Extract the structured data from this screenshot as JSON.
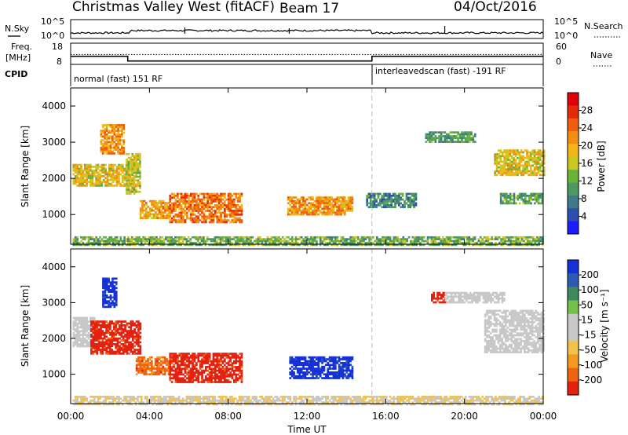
{
  "header": {
    "station": "Christmas Valley West (fitACF)",
    "beam": "Beam 17",
    "date": "04/Oct/2016"
  },
  "nsky_panel": {
    "left_label": "N.Sky",
    "left_ticks": [
      "10^5",
      "10^0"
    ],
    "right_label": "N.Search",
    "right_ticks": [
      "10^5",
      "10^0"
    ]
  },
  "freq_panel": {
    "left_label_line1": "Freq.",
    "left_label_line2": "[MHz]",
    "left_ticks": [
      "18",
      "8"
    ],
    "right_label": "Nave",
    "right_ticks": [
      "60",
      "0"
    ],
    "freq_mhz": [
      [
        0,
        11.8
      ],
      [
        2.9,
        11.8
      ],
      [
        2.9,
        9.6
      ],
      [
        15.3,
        9.6
      ],
      [
        15.3,
        11.8
      ],
      [
        24,
        11.8
      ]
    ],
    "nave": [
      [
        0,
        28
      ],
      [
        24,
        28
      ]
    ]
  },
  "cpid": {
    "label": "CPID",
    "modes": [
      {
        "text": "normal (fast) 151 RF",
        "start_hour": 0
      },
      {
        "text": "interleavedscan (fast) -191 RF",
        "start_hour": 15.3
      }
    ]
  },
  "power_panel": {
    "ylabel": "Slant Range [km]",
    "yticks": [
      "1000",
      "2000",
      "3000",
      "4000"
    ],
    "colorbar_label": "Power [dB]",
    "colorbar_ticks": [
      "4",
      "8",
      "12",
      "16",
      "20",
      "24",
      "28"
    ],
    "colorbar_colors": [
      "#1c1cff",
      "#2f4fb0",
      "#3e7a8a",
      "#4d9a60",
      "#6ab33a",
      "#c8c820",
      "#f3b616",
      "#f48e12",
      "#f15d0c",
      "#e52a0a",
      "#e0000a"
    ]
  },
  "velocity_panel": {
    "ylabel": "Slant Range [km]",
    "yticks": [
      "1000",
      "2000",
      "3000",
      "4000"
    ],
    "colorbar_label": "Velocity [m s⁻¹]",
    "colorbar_ticks": [
      "200",
      "100",
      "50",
      "15",
      "-15",
      "-50",
      "-100",
      "-200"
    ],
    "colorbar_colors": [
      "#1530d8",
      "#2b5bb4",
      "#3e8a5c",
      "#74c14a",
      "#c8c8c8",
      "#c8c8c8",
      "#f2c24a",
      "#f59a20",
      "#f0620e",
      "#e42010"
    ]
  },
  "xaxis": {
    "label": "Time UT",
    "ticks": [
      "00:00",
      "04:00",
      "08:00",
      "12:00",
      "16:00",
      "20:00",
      "00:00"
    ]
  },
  "chart_data": {
    "type": "heatmap",
    "x_range_hours": [
      0,
      24
    ],
    "y_range_km": [
      180,
      4500
    ],
    "mode_change_hour": 15.3,
    "power_regions_db": [
      {
        "t0": 0.1,
        "t1": 3.2,
        "r0": 1800,
        "r1": 2400,
        "db": 18
      },
      {
        "t0": 1.5,
        "t1": 2.7,
        "r0": 2700,
        "r1": 3500,
        "db": 22
      },
      {
        "t0": 2.8,
        "t1": 3.5,
        "r0": 1600,
        "r1": 2700,
        "db": 16
      },
      {
        "t0": 3.5,
        "t1": 5.0,
        "r0": 900,
        "r1": 1400,
        "db": 20
      },
      {
        "t0": 5.0,
        "t1": 8.7,
        "r0": 800,
        "r1": 1600,
        "db": 24
      },
      {
        "t0": 11.0,
        "t1": 14.3,
        "r0": 1000,
        "r1": 1500,
        "db": 22
      },
      {
        "t0": 0.1,
        "t1": 24,
        "r0": 180,
        "r1": 400,
        "db": 12
      },
      {
        "t0": 21.5,
        "t1": 24,
        "r0": 2100,
        "r1": 2800,
        "db": 18
      },
      {
        "t0": 21.8,
        "t1": 24,
        "r0": 1300,
        "r1": 1600,
        "db": 10
      },
      {
        "t0": 18.0,
        "t1": 20.5,
        "r0": 3000,
        "r1": 3300,
        "db": 10
      },
      {
        "t0": 15.0,
        "t1": 17.5,
        "r0": 1200,
        "r1": 1600,
        "db": 8
      }
    ],
    "velocity_regions_ms": [
      {
        "t0": 0.1,
        "t1": 1.2,
        "r0": 1800,
        "r1": 2600,
        "v": 0
      },
      {
        "t0": 1.0,
        "t1": 3.5,
        "r0": 1600,
        "r1": 2500,
        "v": -200
      },
      {
        "t0": 1.6,
        "t1": 2.3,
        "r0": 2900,
        "r1": 3700,
        "v": 200
      },
      {
        "t0": 3.3,
        "t1": 5.0,
        "r0": 1000,
        "r1": 1500,
        "v": -150
      },
      {
        "t0": 5.0,
        "t1": 8.7,
        "r0": 800,
        "r1": 1600,
        "v": -200
      },
      {
        "t0": 11.1,
        "t1": 14.3,
        "r0": 900,
        "r1": 1500,
        "v": 200
      },
      {
        "t0": 0.1,
        "t1": 24,
        "r0": 180,
        "r1": 400,
        "v": -40
      },
      {
        "t0": 21.0,
        "t1": 24,
        "r0": 1600,
        "r1": 2800,
        "v": 0
      },
      {
        "t0": 18.3,
        "t1": 19.0,
        "r0": 3000,
        "r1": 3300,
        "v": -200
      },
      {
        "t0": 19.0,
        "t1": 22.0,
        "r0": 3000,
        "r1": 3300,
        "v": 0
      }
    ]
  }
}
